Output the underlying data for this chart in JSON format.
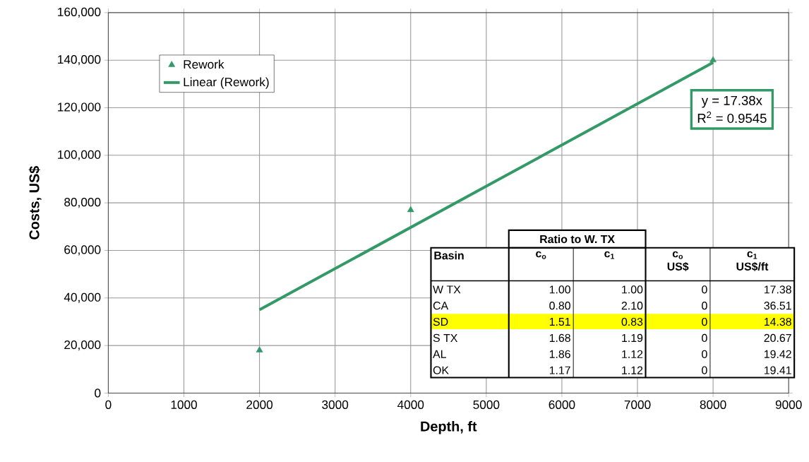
{
  "chart_data": [
    {
      "type": "scatter",
      "xlabel": "Depth, ft",
      "ylabel": "Costs, US$",
      "xlim": [
        0,
        9000
      ],
      "xticks": [
        0,
        1000,
        2000,
        3000,
        4000,
        5000,
        6000,
        7000,
        8000,
        9000
      ],
      "ylim": [
        0,
        160000
      ],
      "yticks": [
        0,
        {
          "value": 20000,
          "label": "20,000"
        },
        {
          "value": 40000,
          "label": "40,000"
        },
        {
          "value": 60000,
          "label": "60,000"
        },
        {
          "value": 80000,
          "label": "80,000"
        },
        {
          "value": 100000,
          "label": "100,000"
        },
        {
          "value": 120000,
          "label": "120,000"
        },
        {
          "value": 140000,
          "label": "140,000"
        },
        {
          "value": 160000,
          "label": "160,000"
        }
      ],
      "series": [
        {
          "name": "Rework",
          "color": "#339966",
          "marker": "triangle",
          "x": [
            2000,
            4000,
            8000
          ],
          "values": [
            18000,
            77000,
            140000
          ]
        },
        {
          "name": "Linear (Rework)",
          "type": "line",
          "color": "#339966",
          "x": [
            2000,
            8000
          ],
          "values": [
            35000,
            139000
          ]
        }
      ],
      "grid": true,
      "legend": "top left",
      "annotations": [
        "y = 17.38x",
        "R$^{2}$ = 0.9545"
      ]
    },
    {
      "type": "other",
      "title": "Ratio to W. TX",
      "categories": [
        "Basin",
        "c$_{o}$",
        "c$_{1}$",
        "c$_{o}$ US$",
        "c$_{1}$ US$/ft"
      ],
      "y_categories": [
        "W TX",
        "CA",
        "SD",
        "S TX",
        "AL",
        "OK"
      ],
      "cell_labels": [
        [
          "1.00",
          "1.00",
          "0",
          "17.38"
        ],
        [
          "0.80",
          "2.10",
          "0",
          "36.51"
        ],
        [
          "1.51",
          "0.83",
          "0",
          "14.38"
        ],
        [
          "1.68",
          "1.19",
          "0",
          "20.67"
        ],
        [
          "1.86",
          "1.12",
          "0",
          "19.42"
        ],
        [
          "1.17",
          "1.12",
          "0",
          "19.41"
        ]
      ],
      "colors": [
        null,
        null,
        "#ffff00",
        null,
        null,
        null
      ]
    }
  ]
}
